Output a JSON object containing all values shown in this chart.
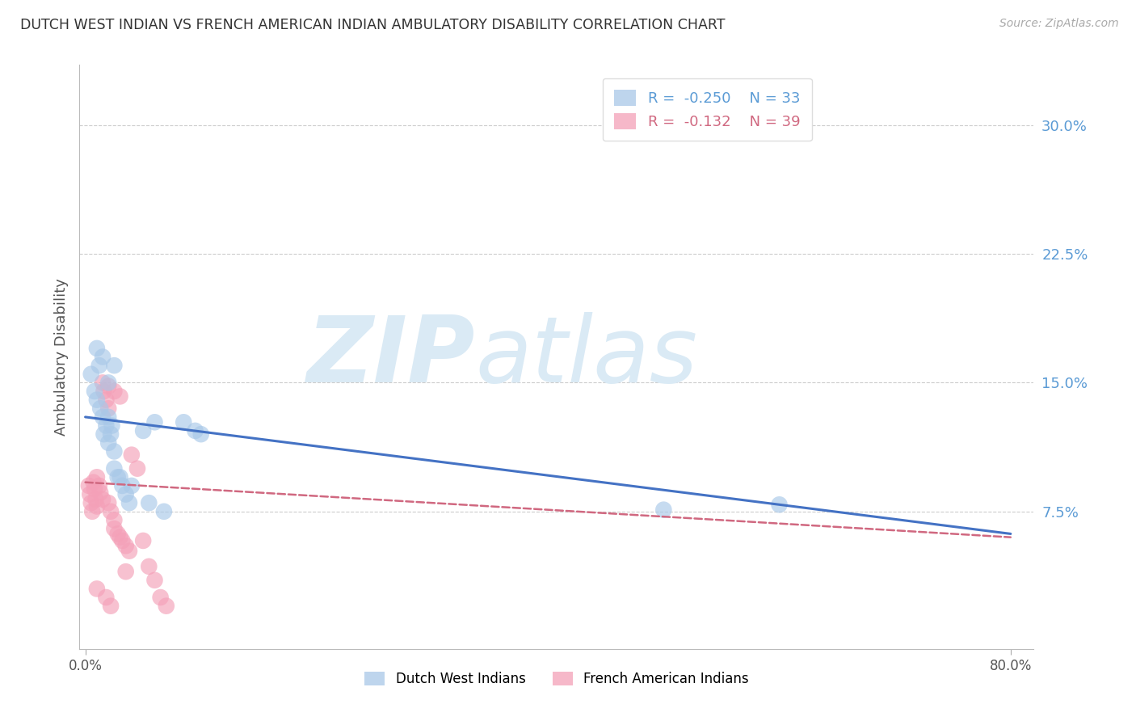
{
  "title": "DUTCH WEST INDIAN VS FRENCH AMERICAN INDIAN AMBULATORY DISABILITY CORRELATION CHART",
  "source": "Source: ZipAtlas.com",
  "ylabel": "Ambulatory Disability",
  "yticks": [
    0.075,
    0.15,
    0.225,
    0.3
  ],
  "ytick_labels": [
    "7.5%",
    "15.0%",
    "22.5%",
    "30.0%"
  ],
  "xlim": [
    -0.005,
    0.82
  ],
  "ylim": [
    -0.005,
    0.335
  ],
  "blue_label": "Dutch West Indians",
  "pink_label": "French American Indians",
  "blue_R": -0.25,
  "blue_N": 33,
  "pink_R": -0.132,
  "pink_N": 39,
  "blue_color": "#a8c8e8",
  "pink_color": "#f4a0b8",
  "line_blue": "#4472c4",
  "line_pink": "#d06880",
  "watermark_zip": "ZIP",
  "watermark_atlas": "atlas",
  "watermark_color": "#daeaf5",
  "background_color": "#ffffff",
  "blue_scatter_x": [
    0.005,
    0.008,
    0.01,
    0.012,
    0.013,
    0.015,
    0.016,
    0.018,
    0.02,
    0.02,
    0.022,
    0.023,
    0.025,
    0.025,
    0.028,
    0.03,
    0.032,
    0.035,
    0.038,
    0.04,
    0.05,
    0.055,
    0.06,
    0.068,
    0.085,
    0.095,
    0.1,
    0.5,
    0.6,
    0.01,
    0.015,
    0.02,
    0.025
  ],
  "blue_scatter_y": [
    0.155,
    0.145,
    0.14,
    0.16,
    0.135,
    0.13,
    0.12,
    0.125,
    0.13,
    0.115,
    0.12,
    0.125,
    0.11,
    0.1,
    0.095,
    0.095,
    0.09,
    0.085,
    0.08,
    0.09,
    0.122,
    0.08,
    0.127,
    0.075,
    0.127,
    0.122,
    0.12,
    0.076,
    0.079,
    0.17,
    0.165,
    0.15,
    0.16
  ],
  "pink_scatter_x": [
    0.003,
    0.004,
    0.005,
    0.006,
    0.007,
    0.008,
    0.009,
    0.01,
    0.01,
    0.012,
    0.013,
    0.015,
    0.016,
    0.018,
    0.02,
    0.02,
    0.022,
    0.025,
    0.025,
    0.028,
    0.03,
    0.032,
    0.035,
    0.038,
    0.04,
    0.045,
    0.05,
    0.055,
    0.06,
    0.065,
    0.07,
    0.015,
    0.02,
    0.025,
    0.03,
    0.01,
    0.018,
    0.022,
    0.035
  ],
  "pink_scatter_y": [
    0.09,
    0.085,
    0.08,
    0.075,
    0.092,
    0.088,
    0.082,
    0.078,
    0.095,
    0.09,
    0.086,
    0.082,
    0.145,
    0.14,
    0.135,
    0.08,
    0.075,
    0.07,
    0.065,
    0.062,
    0.06,
    0.058,
    0.055,
    0.052,
    0.108,
    0.1,
    0.058,
    0.043,
    0.035,
    0.025,
    0.02,
    0.15,
    0.148,
    0.145,
    0.142,
    0.03,
    0.025,
    0.02,
    0.04
  ],
  "blue_line_x0": 0.0,
  "blue_line_x1": 0.8,
  "blue_line_y0": 0.13,
  "blue_line_y1": 0.062,
  "pink_line_x0": 0.0,
  "pink_line_x1": 0.8,
  "pink_line_y0": 0.092,
  "pink_line_y1": 0.06
}
